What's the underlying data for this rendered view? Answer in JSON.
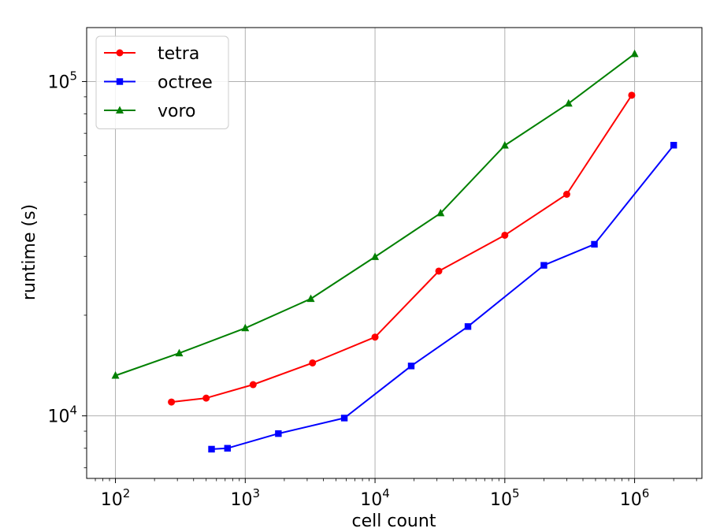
{
  "chart_data": {
    "type": "line",
    "xlabel": "cell count",
    "ylabel": "runtime (s)",
    "xscale": "log",
    "yscale": "log",
    "xlim": [
      60,
      3300000
    ],
    "ylim": [
      6500,
      145000
    ],
    "x_ticks": [
      {
        "value": 100,
        "base": "10",
        "exp": "2"
      },
      {
        "value": 1000,
        "base": "10",
        "exp": "3"
      },
      {
        "value": 10000,
        "base": "10",
        "exp": "4"
      },
      {
        "value": 100000,
        "base": "10",
        "exp": "5"
      },
      {
        "value": 1000000,
        "base": "10",
        "exp": "6"
      }
    ],
    "y_ticks": [
      {
        "value": 10000,
        "base": "10",
        "exp": "4"
      },
      {
        "value": 100000,
        "base": "10",
        "exp": "5"
      }
    ],
    "grid": true,
    "legend_position": "top-left",
    "series": [
      {
        "name": "tetra",
        "color": "#ff0000",
        "marker": "circle",
        "points": [
          [
            270,
            11000
          ],
          [
            500,
            11300
          ],
          [
            1150,
            12400
          ],
          [
            3300,
            14400
          ],
          [
            10000,
            17200
          ],
          [
            31000,
            27100
          ],
          [
            100000,
            34700
          ],
          [
            300000,
            46000
          ],
          [
            950000,
            91000
          ]
        ]
      },
      {
        "name": "octree",
        "color": "#0000ff",
        "marker": "square",
        "points": [
          [
            550,
            7950
          ],
          [
            730,
            8000
          ],
          [
            1800,
            8850
          ],
          [
            5800,
            9850
          ],
          [
            19000,
            14100
          ],
          [
            52000,
            18500
          ],
          [
            200000,
            28200
          ],
          [
            490000,
            32600
          ],
          [
            2000000,
            64500
          ]
        ]
      },
      {
        "name": "voro",
        "color": "#008000",
        "marker": "triangle",
        "points": [
          [
            100,
            13200
          ],
          [
            310,
            15400
          ],
          [
            1000,
            18300
          ],
          [
            3200,
            22400
          ],
          [
            10000,
            29900
          ],
          [
            32000,
            40400
          ],
          [
            100000,
            64400
          ],
          [
            310000,
            86000
          ],
          [
            1000000,
            121000
          ]
        ]
      }
    ]
  }
}
